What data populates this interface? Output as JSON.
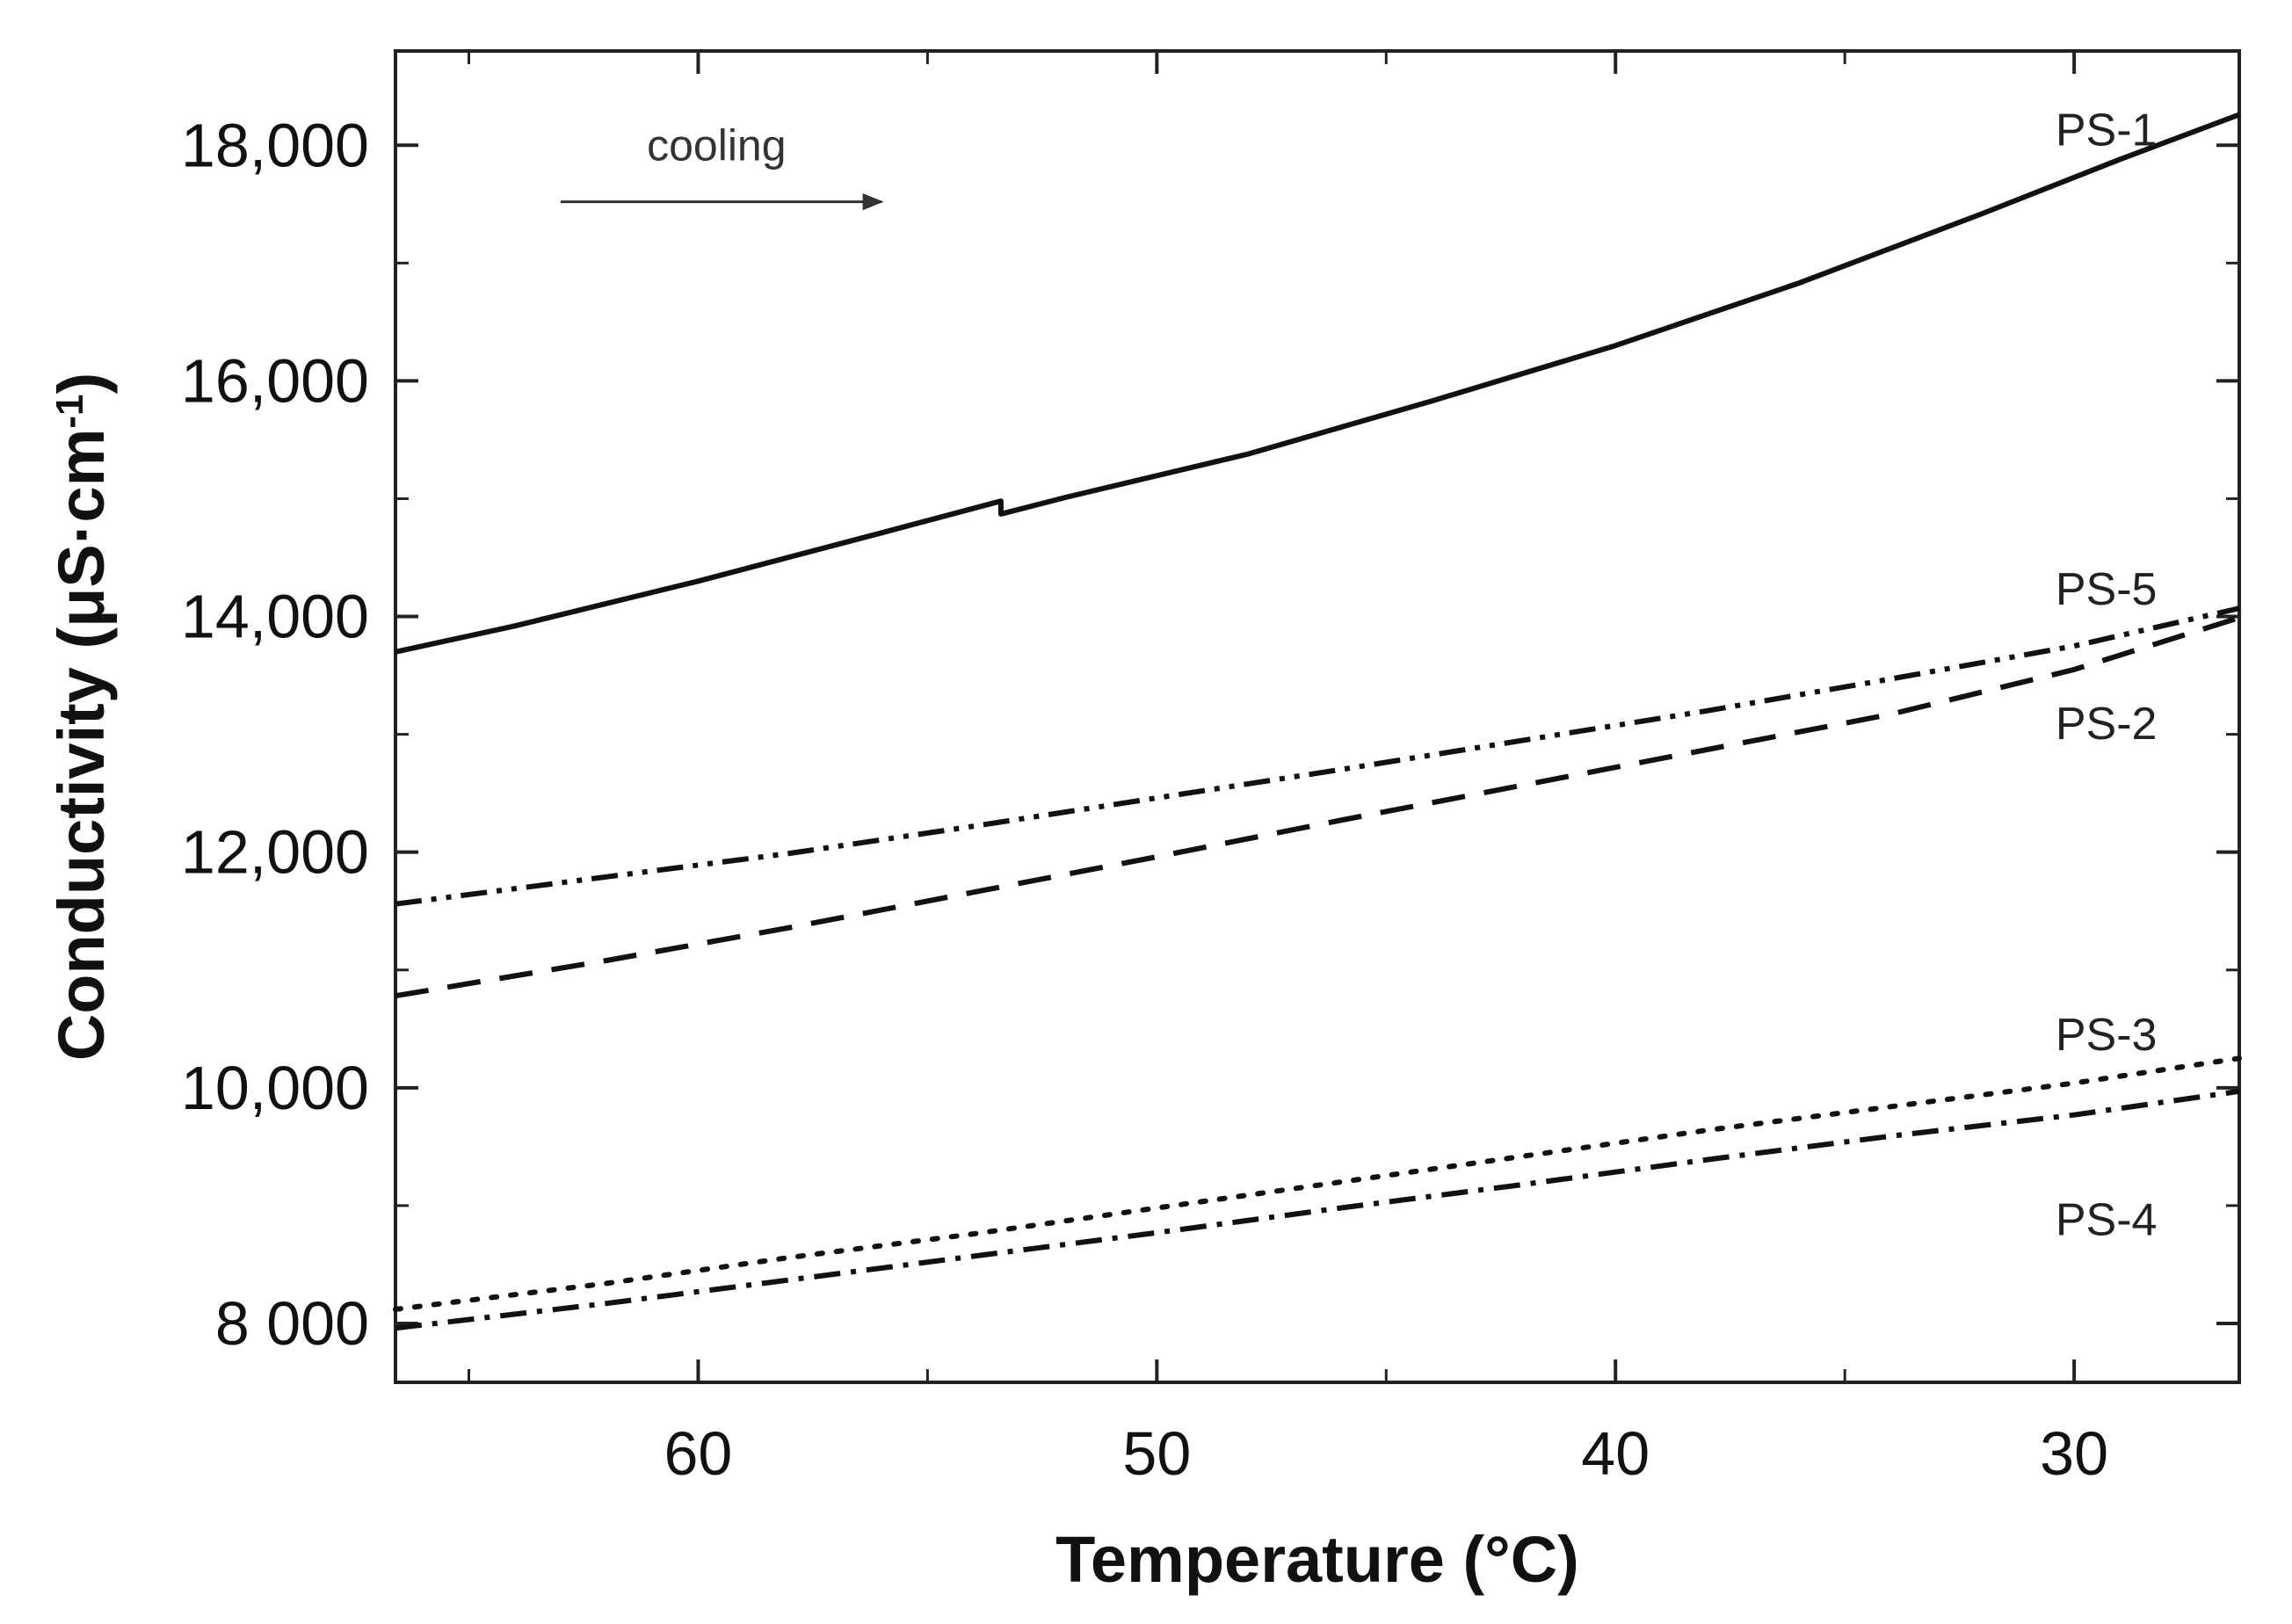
{
  "chart_data": {
    "type": "line",
    "title": "",
    "xlabel": "Temperature (°C)",
    "ylabel": "Conductivity (μS·cm",
    "ylabel_superscript": "-1",
    "ylabel_close": ")",
    "xlim": [
      66.6,
      26.4
    ],
    "ylim": [
      7500,
      18800
    ],
    "x_ticks": [
      60,
      50,
      40,
      30
    ],
    "x_tick_labels": [
      "60",
      "50",
      "40",
      "30"
    ],
    "x_minor_ticks": [
      65,
      55,
      45,
      35
    ],
    "y_ticks": [
      8000,
      10000,
      12000,
      14000,
      16000,
      18000
    ],
    "y_tick_labels": [
      "8 000",
      "10,000",
      "12,000",
      "14,000",
      "16,000",
      "18,000"
    ],
    "y_minor_ticks": [
      9000,
      11000,
      13000,
      15000,
      17000
    ],
    "grid": false,
    "annotation": {
      "text": "cooling",
      "arrow_direction": "right",
      "arrow_from_x": 63.0,
      "arrow_to_x": 56.0,
      "arrow_y": 17520,
      "text_x": 59.6,
      "text_y": 17870
    },
    "series": [
      {
        "name": "PS-1",
        "style": "solid",
        "x": [
          66.6,
          64,
          60,
          56,
          53.4,
          53.4,
          52,
          48,
          44,
          40,
          36,
          32,
          29,
          26.4
        ],
        "values": [
          13700,
          13920,
          14300,
          14710,
          14980,
          14870,
          15010,
          15380,
          15830,
          16300,
          16830,
          17420,
          17880,
          18260
        ],
        "label_text": "PS-1",
        "label_x": 29.3,
        "label_y": 18000
      },
      {
        "name": "PS-5",
        "style": "dash-dot-dot",
        "x": [
          66.6,
          62,
          58,
          54,
          50,
          46,
          42,
          38,
          34,
          30,
          26.4
        ],
        "values": [
          11560,
          11790,
          11990,
          12220,
          12460,
          12700,
          12950,
          13200,
          13470,
          13750,
          14070
        ],
        "label_text": "PS-5",
        "label_x": 29.3,
        "label_y": 14100
      },
      {
        "name": "PS-2",
        "style": "dashed",
        "x": [
          66.6,
          62,
          58,
          54,
          50,
          46,
          42,
          38,
          34,
          30,
          26.4
        ],
        "values": [
          10780,
          11080,
          11360,
          11660,
          11960,
          12270,
          12570,
          12870,
          13170,
          13550,
          13990
        ],
        "label_text": "PS-2",
        "label_x": 29.3,
        "label_y": 12960
      },
      {
        "name": "PS-3",
        "style": "dotted",
        "x": [
          66.6,
          62,
          58,
          54,
          50,
          46,
          42,
          38,
          34,
          30,
          26.4
        ],
        "values": [
          8120,
          8340,
          8560,
          8760,
          8980,
          9200,
          9420,
          9640,
          9840,
          10040,
          10250
        ],
        "label_text": "PS-3",
        "label_x": 29.3,
        "label_y": 10320
      },
      {
        "name": "PS-4",
        "style": "dash-dot",
        "x": [
          66.6,
          62,
          58,
          54,
          50,
          46,
          42,
          38,
          34,
          30,
          26.4
        ],
        "values": [
          7960,
          8170,
          8370,
          8570,
          8770,
          8980,
          9180,
          9390,
          9590,
          9770,
          9970
        ],
        "label_text": "PS-4",
        "label_x": 29.3,
        "label_y": 8750
      }
    ]
  }
}
